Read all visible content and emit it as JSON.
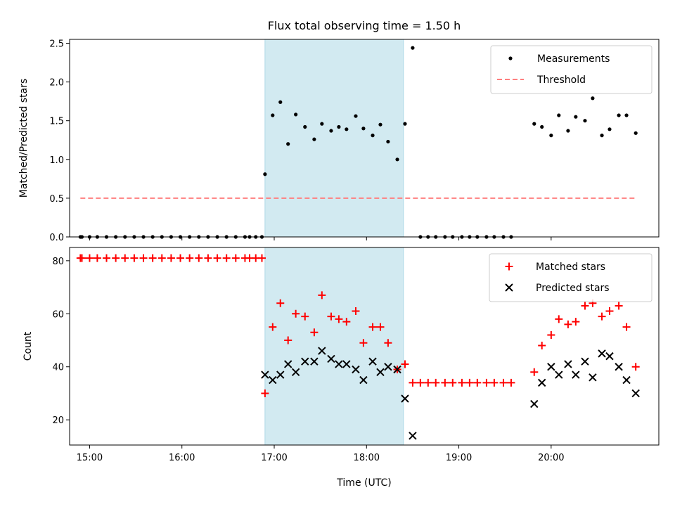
{
  "chart_data": {
    "type": "scatter",
    "title": "Flux total observing time = 1.50 h",
    "xlabel": "Time (UTC)",
    "x_ticks": [
      "15:00",
      "16:00",
      "17:00",
      "18:00",
      "19:00",
      "20:00"
    ],
    "x_range": [
      "14:47",
      "21:10"
    ],
    "shaded_interval": [
      "16:54",
      "18:24"
    ],
    "shaded_color": "#add8e6",
    "panels": [
      {
        "name": "ratio",
        "ylabel": "Matched/Predicted stars",
        "ylim": [
          0,
          2.55
        ],
        "y_ticks": [
          "0.0",
          "0.5",
          "1.0",
          "1.5",
          "2.0",
          "2.5"
        ],
        "legend_position": "upper-right",
        "series": [
          {
            "name": "Measurements",
            "marker": "dot",
            "color": "#000000",
            "points": [
              [
                "14:54",
                0
              ],
              [
                "14:55",
                0
              ],
              [
                "15:00",
                0
              ],
              [
                "15:05",
                0
              ],
              [
                "15:11",
                0
              ],
              [
                "15:17",
                0
              ],
              [
                "15:23",
                0
              ],
              [
                "15:29",
                0
              ],
              [
                "15:35",
                0
              ],
              [
                "15:41",
                0
              ],
              [
                "15:47",
                0
              ],
              [
                "15:53",
                0
              ],
              [
                "15:59",
                0
              ],
              [
                "16:05",
                0
              ],
              [
                "16:11",
                0
              ],
              [
                "16:17",
                0
              ],
              [
                "16:23",
                0
              ],
              [
                "16:29",
                0
              ],
              [
                "16:35",
                0
              ],
              [
                "16:41",
                0
              ],
              [
                "16:44",
                0
              ],
              [
                "16:48",
                0
              ],
              [
                "16:52",
                0
              ],
              [
                "16:54",
                0.81
              ],
              [
                "16:59",
                1.57
              ],
              [
                "17:04",
                1.74
              ],
              [
                "17:09",
                1.2
              ],
              [
                "17:14",
                1.58
              ],
              [
                "17:20",
                1.42
              ],
              [
                "17:26",
                1.26
              ],
              [
                "17:31",
                1.46
              ],
              [
                "17:37",
                1.37
              ],
              [
                "17:42",
                1.42
              ],
              [
                "17:47",
                1.39
              ],
              [
                "17:53",
                1.56
              ],
              [
                "17:58",
                1.4
              ],
              [
                "18:04",
                1.31
              ],
              [
                "18:09",
                1.45
              ],
              [
                "18:14",
                1.23
              ],
              [
                "18:20",
                1.0
              ],
              [
                "18:25",
                1.46
              ],
              [
                "18:30",
                2.44
              ],
              [
                "18:35",
                0
              ],
              [
                "18:40",
                0
              ],
              [
                "18:45",
                0
              ],
              [
                "18:51",
                0
              ],
              [
                "18:56",
                0
              ],
              [
                "19:02",
                0
              ],
              [
                "19:07",
                0
              ],
              [
                "19:12",
                0
              ],
              [
                "19:18",
                0
              ],
              [
                "19:23",
                0
              ],
              [
                "19:29",
                0
              ],
              [
                "19:34",
                0
              ],
              [
                "19:49",
                1.46
              ],
              [
                "19:54",
                1.42
              ],
              [
                "20:00",
                1.31
              ],
              [
                "20:05",
                1.57
              ],
              [
                "20:11",
                1.37
              ],
              [
                "20:16",
                1.55
              ],
              [
                "20:22",
                1.5
              ],
              [
                "20:27",
                1.79
              ],
              [
                "20:33",
                1.31
              ],
              [
                "20:38",
                1.39
              ],
              [
                "20:44",
                1.57
              ],
              [
                "20:49",
                1.57
              ],
              [
                "20:55",
                1.34
              ]
            ]
          },
          {
            "name": "Threshold",
            "marker": "dashed-line",
            "color": "#ff7f7f",
            "points": [
              [
                "14:54",
                0.5
              ],
              [
                "20:55",
                0.5
              ]
            ]
          }
        ]
      },
      {
        "name": "count",
        "ylabel": "Count",
        "ylim": [
          10.5,
          85
        ],
        "y_ticks": [
          "20",
          "40",
          "60",
          "80"
        ],
        "legend_position": "upper-right",
        "series": [
          {
            "name": "Matched stars",
            "marker": "plus",
            "color": "#ff0000",
            "points": [
              [
                "14:54",
                81
              ],
              [
                "14:55",
                81
              ],
              [
                "15:00",
                81
              ],
              [
                "15:05",
                81
              ],
              [
                "15:11",
                81
              ],
              [
                "15:17",
                81
              ],
              [
                "15:23",
                81
              ],
              [
                "15:29",
                81
              ],
              [
                "15:35",
                81
              ],
              [
                "15:41",
                81
              ],
              [
                "15:47",
                81
              ],
              [
                "15:53",
                81
              ],
              [
                "15:59",
                81
              ],
              [
                "16:05",
                81
              ],
              [
                "16:11",
                81
              ],
              [
                "16:17",
                81
              ],
              [
                "16:23",
                81
              ],
              [
                "16:29",
                81
              ],
              [
                "16:35",
                81
              ],
              [
                "16:41",
                81
              ],
              [
                "16:44",
                81
              ],
              [
                "16:48",
                81
              ],
              [
                "16:52",
                81
              ],
              [
                "16:54",
                30
              ],
              [
                "16:59",
                55
              ],
              [
                "17:04",
                64
              ],
              [
                "17:09",
                50
              ],
              [
                "17:14",
                60
              ],
              [
                "17:20",
                59
              ],
              [
                "17:26",
                53
              ],
              [
                "17:31",
                67
              ],
              [
                "17:37",
                59
              ],
              [
                "17:42",
                58
              ],
              [
                "17:47",
                57
              ],
              [
                "17:53",
                61
              ],
              [
                "17:58",
                49
              ],
              [
                "18:04",
                55
              ],
              [
                "18:09",
                55
              ],
              [
                "18:14",
                49
              ],
              [
                "18:20",
                39
              ],
              [
                "18:25",
                41
              ],
              [
                "18:30",
                34
              ],
              [
                "18:35",
                34
              ],
              [
                "18:40",
                34
              ],
              [
                "18:45",
                34
              ],
              [
                "18:51",
                34
              ],
              [
                "18:56",
                34
              ],
              [
                "19:02",
                34
              ],
              [
                "19:07",
                34
              ],
              [
                "19:12",
                34
              ],
              [
                "19:18",
                34
              ],
              [
                "19:23",
                34
              ],
              [
                "19:29",
                34
              ],
              [
                "19:34",
                34
              ],
              [
                "19:49",
                38
              ],
              [
                "19:54",
                48
              ],
              [
                "20:00",
                52
              ],
              [
                "20:05",
                58
              ],
              [
                "20:11",
                56
              ],
              [
                "20:16",
                57
              ],
              [
                "20:22",
                63
              ],
              [
                "20:27",
                64
              ],
              [
                "20:33",
                59
              ],
              [
                "20:38",
                61
              ],
              [
                "20:44",
                63
              ],
              [
                "20:49",
                55
              ],
              [
                "20:55",
                40
              ]
            ]
          },
          {
            "name": "Predicted stars",
            "marker": "x",
            "color": "#000000",
            "points": [
              [
                "16:54",
                37
              ],
              [
                "16:59",
                35
              ],
              [
                "17:04",
                37
              ],
              [
                "17:09",
                41
              ],
              [
                "17:14",
                38
              ],
              [
                "17:20",
                42
              ],
              [
                "17:26",
                42
              ],
              [
                "17:31",
                46
              ],
              [
                "17:37",
                43
              ],
              [
                "17:42",
                41
              ],
              [
                "17:47",
                41
              ],
              [
                "17:53",
                39
              ],
              [
                "17:58",
                35
              ],
              [
                "18:04",
                42
              ],
              [
                "18:09",
                38
              ],
              [
                "18:14",
                40
              ],
              [
                "18:20",
                39
              ],
              [
                "18:25",
                28
              ],
              [
                "18:30",
                14
              ],
              [
                "19:49",
                26
              ],
              [
                "19:54",
                34
              ],
              [
                "20:00",
                40
              ],
              [
                "20:05",
                37
              ],
              [
                "20:11",
                41
              ],
              [
                "20:16",
                37
              ],
              [
                "20:22",
                42
              ],
              [
                "20:27",
                36
              ],
              [
                "20:33",
                45
              ],
              [
                "20:38",
                44
              ],
              [
                "20:44",
                40
              ],
              [
                "20:49",
                35
              ],
              [
                "20:55",
                30
              ]
            ]
          }
        ]
      }
    ]
  }
}
